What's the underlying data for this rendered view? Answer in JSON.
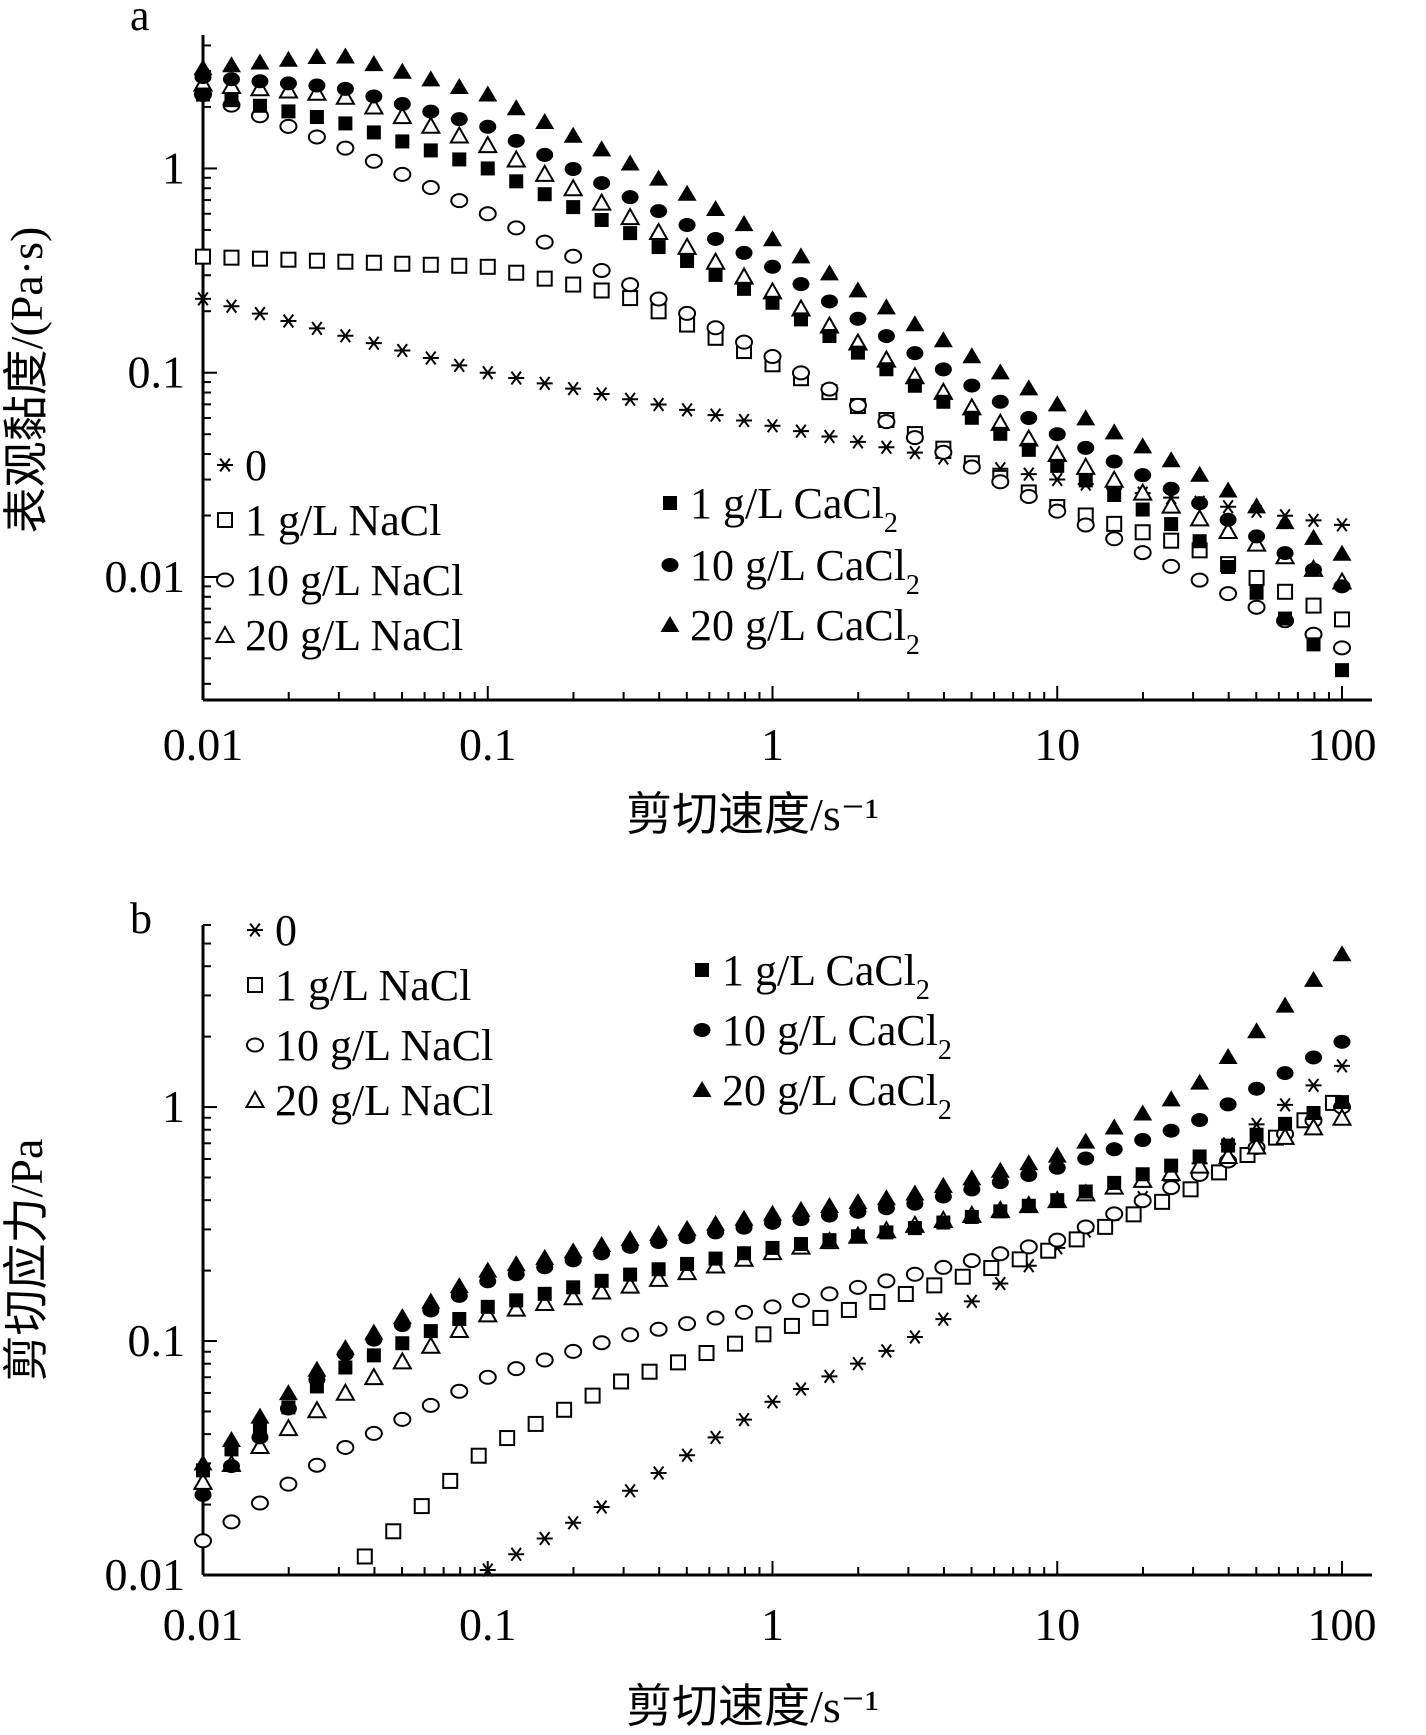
{
  "chart_data": [
    {
      "panel_label": "a",
      "type": "scatter",
      "xscale": "log",
      "yscale": "log",
      "xlim": [
        0.01,
        100
      ],
      "ylim": [
        0.0025,
        4.5
      ],
      "xticks": [
        0.01,
        0.1,
        1,
        10,
        100
      ],
      "xtick_labels": [
        "0.01",
        "0.1",
        "1",
        "10",
        "100"
      ],
      "yticks": [
        0.01,
        0.1,
        1
      ],
      "ytick_labels": [
        "0.01",
        "0.1",
        "1"
      ],
      "xlabel": "剪切速度/s⁻¹",
      "ylabel": "表观黏度/(Pa·s)",
      "series": [
        {
          "name": "0",
          "marker": "asterisk",
          "x": [
            0.01,
            0.1,
            1,
            10,
            100
          ],
          "y": [
            0.23,
            0.1,
            0.055,
            0.03,
            0.018
          ]
        },
        {
          "name": "1 g/L NaCl",
          "marker": "open-square",
          "x": [
            0.01,
            0.1,
            0.3,
            1,
            3,
            10,
            30,
            100
          ],
          "y": [
            0.37,
            0.33,
            0.24,
            0.11,
            0.052,
            0.022,
            0.014,
            0.0062
          ]
        },
        {
          "name": "10 g/L NaCl",
          "marker": "open-circle",
          "x": [
            0.01,
            0.03,
            0.1,
            0.3,
            1,
            3,
            10,
            30,
            100
          ],
          "y": [
            2.3,
            1.3,
            0.6,
            0.28,
            0.12,
            0.05,
            0.021,
            0.01,
            0.0045
          ]
        },
        {
          "name": "20 g/L NaCl",
          "marker": "open-triangle",
          "x": [
            0.01,
            0.03,
            0.1,
            0.3,
            1,
            3,
            10,
            30,
            100
          ],
          "y": [
            2.6,
            2.3,
            1.3,
            0.6,
            0.25,
            0.1,
            0.04,
            0.02,
            0.0095
          ]
        },
        {
          "name": "1 g/L CaCl₂",
          "marker": "filled-square",
          "x": [
            0.01,
            0.03,
            0.1,
            0.3,
            1,
            3,
            10,
            30,
            100
          ],
          "y": [
            2.3,
            1.7,
            1.0,
            0.5,
            0.22,
            0.09,
            0.035,
            0.016,
            0.0035
          ]
        },
        {
          "name": "10 g/L CaCl₂",
          "marker": "filled-circle",
          "x": [
            0.01,
            0.03,
            0.1,
            0.3,
            1,
            3,
            10,
            30,
            100
          ],
          "y": [
            2.8,
            2.5,
            1.6,
            0.75,
            0.33,
            0.13,
            0.05,
            0.024,
            0.009
          ]
        },
        {
          "name": "20 g/L CaCl₂",
          "marker": "filled-triangle",
          "x": [
            0.01,
            0.03,
            0.1,
            0.3,
            1,
            3,
            10,
            30,
            100
          ],
          "y": [
            3.1,
            3.6,
            2.3,
            1.1,
            0.45,
            0.18,
            0.07,
            0.033,
            0.013
          ]
        }
      ]
    },
    {
      "panel_label": "b",
      "type": "scatter",
      "xscale": "log",
      "yscale": "log",
      "xlim": [
        0.01,
        100
      ],
      "ylim": [
        0.01,
        6
      ],
      "xticks": [
        0.01,
        0.1,
        1,
        10,
        100
      ],
      "xtick_labels": [
        "0.01",
        "0.1",
        "1",
        "10",
        "100"
      ],
      "yticks": [
        0.01,
        0.1,
        1
      ],
      "ytick_labels": [
        "0.01",
        "0.1",
        "1"
      ],
      "xlabel": "剪切速度/s⁻¹",
      "ylabel": "剪切应力/Pa",
      "series": [
        {
          "name": "0",
          "marker": "asterisk",
          "x": [
            0.1,
            0.3,
            1,
            3,
            10,
            30,
            100
          ],
          "y": [
            0.0105,
            0.022,
            0.055,
            0.1,
            0.25,
            0.55,
            1.5
          ]
        },
        {
          "name": "1 g/L NaCl",
          "marker": "open-square",
          "x": [
            0.037,
            0.1,
            0.3,
            1,
            3,
            10,
            30,
            100
          ],
          "y": [
            0.012,
            0.035,
            0.068,
            0.11,
            0.16,
            0.25,
            0.45,
            1.1
          ]
        },
        {
          "name": "10 g/L NaCl",
          "marker": "open-circle",
          "x": [
            0.01,
            0.03,
            0.1,
            0.3,
            1,
            3,
            10,
            30,
            100
          ],
          "y": [
            0.014,
            0.034,
            0.07,
            0.105,
            0.14,
            0.19,
            0.27,
            0.5,
            1.0
          ]
        },
        {
          "name": "20 g/L NaCl",
          "marker": "open-triangle",
          "x": [
            0.01,
            0.03,
            0.1,
            0.3,
            1,
            3,
            10,
            30,
            100
          ],
          "y": [
            0.025,
            0.058,
            0.13,
            0.17,
            0.24,
            0.31,
            0.4,
            0.55,
            0.9
          ]
        },
        {
          "name": "1 g/L CaCl₂",
          "marker": "filled-square",
          "x": [
            0.01,
            0.03,
            0.1,
            0.3,
            1,
            3,
            10,
            30,
            100
          ],
          "y": [
            0.028,
            0.075,
            0.14,
            0.19,
            0.25,
            0.3,
            0.4,
            0.6,
            1.05
          ]
        },
        {
          "name": "10 g/L CaCl₂",
          "marker": "filled-circle",
          "x": [
            0.01,
            0.03,
            0.1,
            0.3,
            1,
            3,
            10,
            30,
            100
          ],
          "y": [
            0.022,
            0.085,
            0.18,
            0.25,
            0.32,
            0.38,
            0.55,
            0.85,
            1.9
          ]
        },
        {
          "name": "20 g/L CaCl₂",
          "marker": "filled-triangle",
          "x": [
            0.01,
            0.03,
            0.1,
            0.3,
            1,
            3,
            10,
            30,
            100
          ],
          "y": [
            0.03,
            0.09,
            0.2,
            0.27,
            0.35,
            0.42,
            0.62,
            1.2,
            4.5
          ]
        }
      ]
    }
  ]
}
